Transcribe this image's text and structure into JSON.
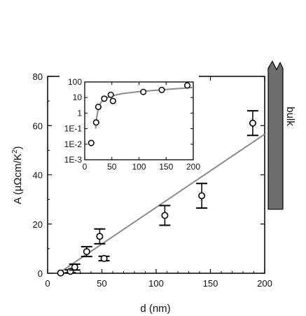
{
  "chart_data": [
    {
      "type": "scatter",
      "title": "",
      "xlabel": "d (nm)",
      "ylabel": "A (µΩcm/K²)",
      "ylabel_parts": {
        "before": "A (µΩcm/K",
        "sup": "2",
        "after": ")"
      },
      "xlim": [
        0,
        200
      ],
      "ylim": [
        0,
        80
      ],
      "xticks": [
        0,
        50,
        100,
        150,
        200
      ],
      "yticks": [
        0,
        20,
        40,
        60,
        80
      ],
      "xtick_labels": [
        "0",
        "50",
        "100",
        "150",
        "200"
      ],
      "ytick_labels": [
        "0",
        "20",
        "40",
        "60",
        "80"
      ],
      "series": [
        {
          "marker": "open-circle",
          "points": [
            {
              "x": 12,
              "y": 0.1,
              "err_low": 0,
              "err_high": 0
            },
            {
              "x": 21,
              "y": 0.8,
              "err_low": 0.6,
              "err_high": 0.6
            },
            {
              "x": 25,
              "y": 2.5,
              "err_low": 1.2,
              "err_high": 1.2
            },
            {
              "x": 36,
              "y": 8.8,
              "err_low": 2.0,
              "err_high": 2.0
            },
            {
              "x": 48,
              "y": 15.0,
              "err_low": 3.0,
              "err_high": 3.0
            },
            {
              "x": 52,
              "y": 6.0,
              "err_low": 0.9,
              "err_high": 0.9
            },
            {
              "x": 108,
              "y": 23.5,
              "err_low": 4.0,
              "err_high": 4.0
            },
            {
              "x": 142,
              "y": 31.5,
              "err_low": 5.0,
              "err_high": 5.0
            },
            {
              "x": 189,
              "y": 61.0,
              "err_low": 5.0,
              "err_high": 5.0
            }
          ]
        }
      ],
      "fit_line": {
        "x": [
          10,
          200
        ],
        "y": [
          -0.6,
          56.5
        ],
        "color": "#8a8a8a"
      },
      "bulk_band": {
        "label": "bulk",
        "y_from": 26,
        "y_to": 85,
        "color": "#6e6e6e"
      }
    },
    {
      "type": "scatter",
      "scale": {
        "y": "log"
      },
      "xlim": [
        0,
        200
      ],
      "ylim": [
        0.001,
        100
      ],
      "xticks": [
        0,
        50,
        100,
        150,
        200
      ],
      "yticks": [
        0.001,
        0.01,
        0.1,
        1,
        10,
        100
      ],
      "xtick_labels": [
        "0",
        "50",
        "100",
        "150",
        "200"
      ],
      "ytick_labels": [
        "1E-3",
        "1E-2",
        "1E-1",
        "1",
        "10",
        "100"
      ],
      "points": [
        {
          "x": 12,
          "y": 0.012
        },
        {
          "x": 21,
          "y": 0.25
        },
        {
          "x": 25,
          "y": 2.5
        },
        {
          "x": 36,
          "y": 8.5
        },
        {
          "x": 48,
          "y": 15
        },
        {
          "x": 52,
          "y": 6
        },
        {
          "x": 108,
          "y": 23
        },
        {
          "x": 142,
          "y": 31
        },
        {
          "x": 189,
          "y": 60
        }
      ],
      "fit_curve": {
        "x": [
          20,
          22,
          25,
          30,
          40,
          50,
          70,
          100,
          140,
          190,
          200
        ],
        "y": [
          0.1,
          0.55,
          2.0,
          5.0,
          9.5,
          13,
          18,
          24,
          31,
          42,
          44
        ],
        "color": "#8a8a8a"
      }
    }
  ]
}
